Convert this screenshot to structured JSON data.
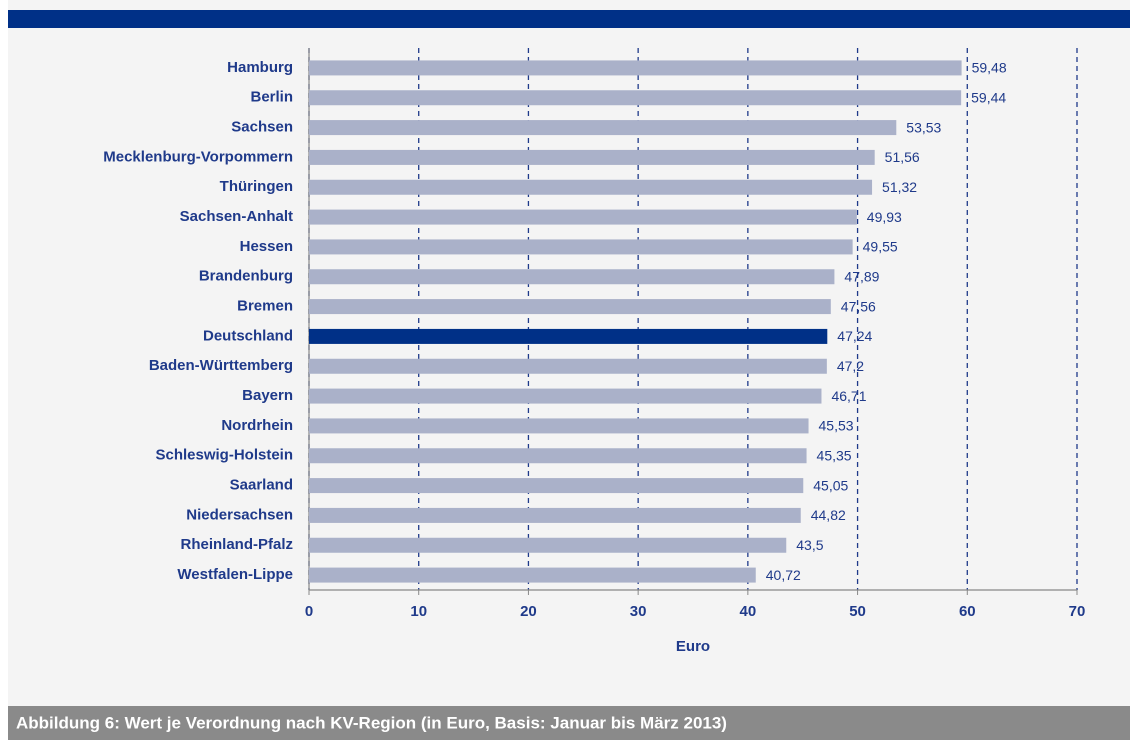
{
  "chart_data": {
    "type": "barh",
    "caption": "Abbildung 6:  Wert je Verordnung nach KV-Region (in Euro, Basis: Januar bis März 2013)",
    "x_label": "Euro",
    "categories": [
      "Hamburg",
      "Berlin",
      "Sachsen",
      "Mecklenburg-Vorpommern",
      "Thüringen",
      "Sachsen-Anhalt",
      "Hessen",
      "Brandenburg",
      "Bremen",
      "Deutschland",
      "Baden-Württemberg",
      "Bayern",
      "Nordrhein",
      "Schleswig-Holstein",
      "Saarland",
      "Niedersachsen",
      "Rheinland-Pfalz",
      "Westfalen-Lippe"
    ],
    "values": [
      59.48,
      59.44,
      53.53,
      51.56,
      51.32,
      49.93,
      49.55,
      47.89,
      47.56,
      47.24,
      47.2,
      46.71,
      45.53,
      45.35,
      45.05,
      44.82,
      43.5,
      40.72
    ],
    "value_labels": [
      "59,48",
      "59,44",
      "53,53",
      "51,56",
      "51,32",
      "49,93",
      "49,55",
      "47,89",
      "47,56",
      "47,24",
      "47,2",
      "46,71",
      "45,53",
      "45,35",
      "45,05",
      "44,82",
      "43,5",
      "40,72"
    ],
    "colors": [
      "#aab1c9",
      "#aab1c9",
      "#aab1c9",
      "#aab1c9",
      "#aab1c9",
      "#aab1c9",
      "#aab1c9",
      "#aab1c9",
      "#aab1c9",
      "#003087",
      "#aab1c9",
      "#aab1c9",
      "#aab1c9",
      "#aab1c9",
      "#aab1c9",
      "#aab1c9",
      "#aab1c9",
      "#aab1c9"
    ],
    "xlim": [
      0,
      70
    ],
    "xticks": [
      0,
      10,
      20,
      30,
      40,
      50,
      60,
      70
    ],
    "grid": true
  }
}
